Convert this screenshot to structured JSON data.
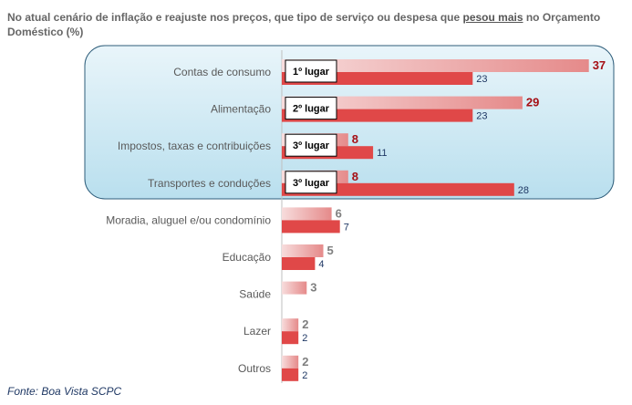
{
  "title_part1": "No atual cenário de inflação e reajuste nos preços, que tipo de serviço ou despesa que ",
  "title_highlight": "pesou mais",
  "title_part2": " no Orçamento Doméstico (%)",
  "source": "Fonte: Boa Vista SCPC",
  "colors": {
    "top_bar_start": "#f7dcdc",
    "top_bar_end": "#e58a8a",
    "bottom_bar": "#e04848",
    "highlight_box": "#c7e6f2",
    "highlight_border": "#2e5d7a",
    "top_value_highlighted": "#a50f15",
    "top_value_other": "#7f7f7f",
    "bottom_value": "#1f3864",
    "category_text": "#595959"
  },
  "chart_data": {
    "type": "bar",
    "orientation": "horizontal",
    "categories": [
      "Contas de consumo",
      "Alimentação",
      "Impostos, taxas e contribuições",
      "Transportes e conduções",
      "Moradia, aluguel e/ou condomínio",
      "Educação",
      "Saúde",
      "Lazer",
      "Outros"
    ],
    "series": [
      {
        "values": [
          37,
          29,
          8,
          8,
          6,
          5,
          3,
          2,
          2
        ]
      },
      {
        "values": [
          23,
          23,
          11,
          28,
          7,
          4,
          null,
          2,
          2
        ]
      }
    ],
    "rank_labels": [
      "1º lugar",
      "2º lugar",
      "3º lugar",
      "3º lugar"
    ],
    "highlighted_categories": 4,
    "xlim": [
      0,
      37
    ]
  }
}
